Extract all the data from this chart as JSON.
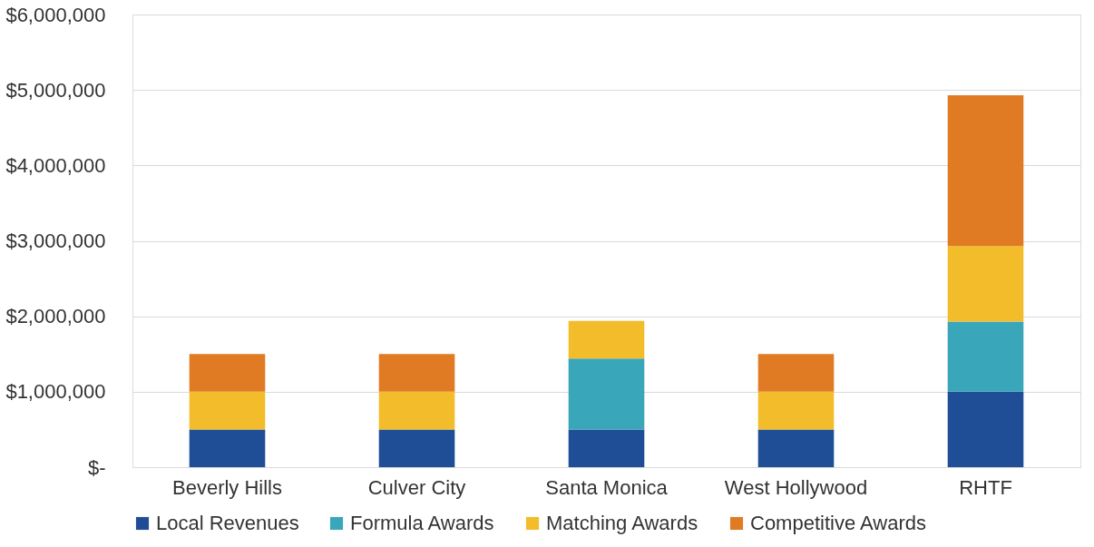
{
  "chart_data": {
    "type": "bar",
    "stacked": true,
    "categories": [
      "Beverly Hills",
      "Culver City",
      "Santa Monica",
      "West Hollywood",
      "RHTF"
    ],
    "series": [
      {
        "name": "Local Revenues",
        "color": "#1f4e96",
        "values": [
          500000,
          500000,
          500000,
          500000,
          1000000
        ]
      },
      {
        "name": "Formula Awards",
        "color": "#3aa6b9",
        "values": [
          0,
          0,
          940000,
          0,
          930000
        ]
      },
      {
        "name": "Matching Awards",
        "color": "#f2bc2a",
        "values": [
          500000,
          500000,
          500000,
          500000,
          1000000
        ]
      },
      {
        "name": "Competitive Awards",
        "color": "#e07b24",
        "values": [
          500000,
          500000,
          0,
          500000,
          2000000
        ]
      }
    ],
    "ylim": [
      0,
      6000000
    ],
    "yticks": [
      {
        "value": 0,
        "label": "$-"
      },
      {
        "value": 1000000,
        "label": "$1,000,000"
      },
      {
        "value": 2000000,
        "label": "$2,000,000"
      },
      {
        "value": 3000000,
        "label": "$3,000,000"
      },
      {
        "value": 4000000,
        "label": "$4,000,000"
      },
      {
        "value": 5000000,
        "label": "$5,000,000"
      },
      {
        "value": 6000000,
        "label": "$6,000,000"
      }
    ],
    "grid": "y",
    "legend": "bottom"
  }
}
